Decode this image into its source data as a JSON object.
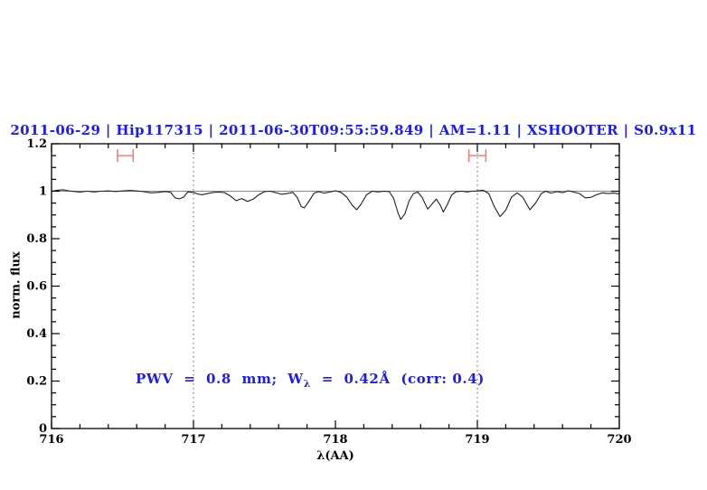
{
  "title": "2011-06-29 | Hip117315 | 2011-06-30T09:55:59.849 | AM=1.11 | XSHOOTER | S0.9x11",
  "annotation": {
    "prefix": "PWV  =  0.8  mm;  W",
    "sub": "λ",
    "suffix": "  =  0.42Å  (corr: 0.4)"
  },
  "colors": {
    "title_blue": "#1a1aff",
    "annotation_blue": "#1a1aff",
    "spectrum_black": "#1f1f1f",
    "continuum_red": "#ff5252",
    "marker_salmon": "#f08080",
    "dotted_gray": "#606060",
    "frame_black": "#000000"
  },
  "chart_data": {
    "type": "line",
    "title": "2011-06-29 | Hip117315 | 2011-06-30T09:55:59.849 | AM=1.11 | XSHOOTER | S0.9x11",
    "xlabel": "λ(AA)",
    "ylabel": "norm. flux",
    "xlim": [
      716,
      720
    ],
    "ylim": [
      0,
      1.2
    ],
    "grid": false,
    "x_major_ticks": [
      716,
      717,
      718,
      719,
      720
    ],
    "x_tick_labels": [
      "716",
      "717",
      "718",
      "719",
      "720"
    ],
    "x_minor_step": 0.2,
    "y_major_ticks": [
      0,
      0.2,
      0.4,
      0.6,
      0.8,
      1,
      1.2
    ],
    "y_tick_labels": [
      "0",
      "0.2",
      "0.4",
      "0.6",
      "0.8",
      "1",
      "1.2"
    ],
    "y_minor_step": 0.05,
    "vlines": [
      717,
      719
    ],
    "continuum_line": {
      "y": 1.0
    },
    "band_markers": [
      {
        "x": 716.52,
        "y": 1.15,
        "halfwidth": 0.055
      },
      {
        "x": 719.0,
        "y": 1.15,
        "halfwidth": 0.06
      }
    ],
    "series": [
      {
        "name": "normalized spectrum",
        "points": [
          [
            716.0,
            1.0
          ],
          [
            716.04,
            1.004
          ],
          [
            716.08,
            1.006
          ],
          [
            716.12,
            1.002
          ],
          [
            716.16,
            0.999
          ],
          [
            716.2,
            0.996
          ],
          [
            716.25,
            1.0
          ],
          [
            716.3,
            0.997
          ],
          [
            716.35,
            1.0
          ],
          [
            716.4,
            1.001
          ],
          [
            716.45,
            0.999
          ],
          [
            716.5,
            1.001
          ],
          [
            716.55,
            1.003
          ],
          [
            716.6,
            1.001
          ],
          [
            716.65,
            0.998
          ],
          [
            716.7,
            0.993
          ],
          [
            716.75,
            0.995
          ],
          [
            716.8,
            0.999
          ],
          [
            716.84,
            0.995
          ],
          [
            716.87,
            0.972
          ],
          [
            716.9,
            0.968
          ],
          [
            716.93,
            0.975
          ],
          [
            716.96,
            0.997
          ],
          [
            717.0,
            0.995
          ],
          [
            717.03,
            0.988
          ],
          [
            717.06,
            0.985
          ],
          [
            717.1,
            0.99
          ],
          [
            717.14,
            0.995
          ],
          [
            717.18,
            0.996
          ],
          [
            717.22,
            0.994
          ],
          [
            717.26,
            0.98
          ],
          [
            717.3,
            0.96
          ],
          [
            717.34,
            0.969
          ],
          [
            717.38,
            0.957
          ],
          [
            717.42,
            0.966
          ],
          [
            717.46,
            0.985
          ],
          [
            717.5,
            0.998
          ],
          [
            717.54,
            1.0
          ],
          [
            717.58,
            0.994
          ],
          [
            717.62,
            0.987
          ],
          [
            717.66,
            0.99
          ],
          [
            717.7,
            0.995
          ],
          [
            717.73,
            0.975
          ],
          [
            717.76,
            0.935
          ],
          [
            717.78,
            0.93
          ],
          [
            717.81,
            0.955
          ],
          [
            717.85,
            0.992
          ],
          [
            717.88,
            0.998
          ],
          [
            717.92,
            0.992
          ],
          [
            717.96,
            0.996
          ],
          [
            718.0,
            1.002
          ],
          [
            718.04,
            0.995
          ],
          [
            718.08,
            0.975
          ],
          [
            718.12,
            0.94
          ],
          [
            718.15,
            0.922
          ],
          [
            718.18,
            0.945
          ],
          [
            718.22,
            0.985
          ],
          [
            718.26,
            1.0
          ],
          [
            718.3,
            0.997
          ],
          [
            718.34,
            1.0
          ],
          [
            718.38,
            0.998
          ],
          [
            718.41,
            0.97
          ],
          [
            718.44,
            0.91
          ],
          [
            718.46,
            0.881
          ],
          [
            718.49,
            0.905
          ],
          [
            718.52,
            0.96
          ],
          [
            718.55,
            0.99
          ],
          [
            718.58,
            0.996
          ],
          [
            718.61,
            0.975
          ],
          [
            718.65,
            0.925
          ],
          [
            718.68,
            0.945
          ],
          [
            718.71,
            0.967
          ],
          [
            718.74,
            0.94
          ],
          [
            718.76,
            0.912
          ],
          [
            718.79,
            0.945
          ],
          [
            718.82,
            0.985
          ],
          [
            718.85,
            0.998
          ],
          [
            718.89,
            1.0
          ],
          [
            718.93,
            0.997
          ],
          [
            718.96,
            1.0
          ],
          [
            719.0,
            1.001
          ],
          [
            719.04,
            1.004
          ],
          [
            719.08,
            0.99
          ],
          [
            719.12,
            0.935
          ],
          [
            719.16,
            0.893
          ],
          [
            719.2,
            0.92
          ],
          [
            719.24,
            0.975
          ],
          [
            719.28,
            0.993
          ],
          [
            719.32,
            0.975
          ],
          [
            719.37,
            0.922
          ],
          [
            719.41,
            0.95
          ],
          [
            719.45,
            0.99
          ],
          [
            719.48,
            1.0
          ],
          [
            719.52,
            0.992
          ],
          [
            719.56,
            0.998
          ],
          [
            719.6,
            0.994
          ],
          [
            719.64,
            1.002
          ],
          [
            719.68,
            0.996
          ],
          [
            719.72,
            0.99
          ],
          [
            719.76,
            0.972
          ],
          [
            719.8,
            0.974
          ],
          [
            719.84,
            0.985
          ],
          [
            719.88,
            0.993
          ],
          [
            719.92,
            0.99
          ],
          [
            719.96,
            0.992
          ],
          [
            720.0,
            0.988
          ]
        ]
      }
    ]
  }
}
